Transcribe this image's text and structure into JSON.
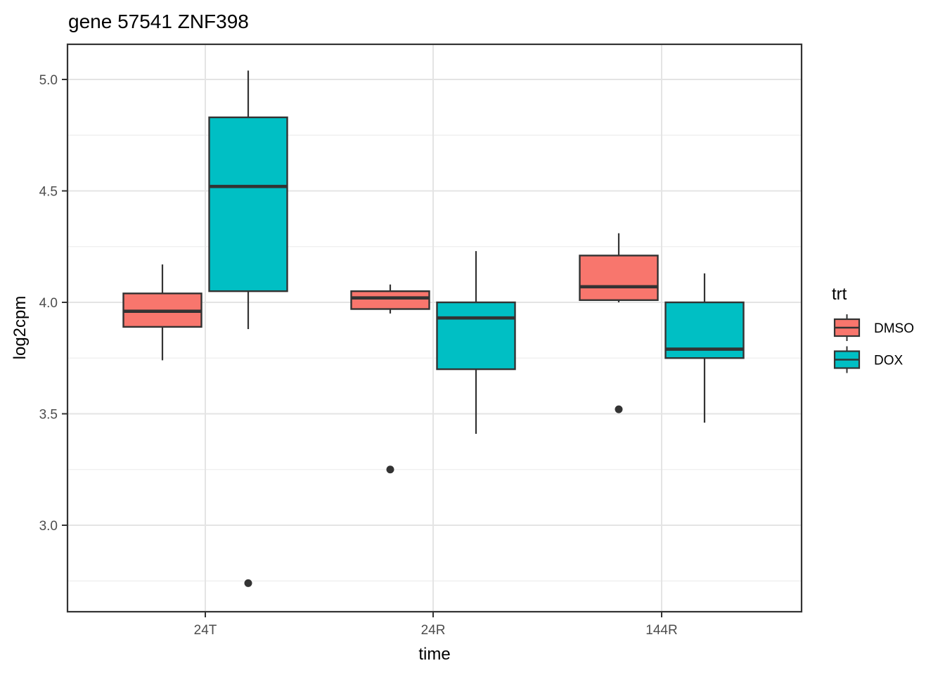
{
  "chart_data": {
    "type": "boxplot",
    "title": "gene 57541 ZNF398",
    "xlabel": "time",
    "ylabel": "log2cpm",
    "categories": [
      "24T",
      "24R",
      "144R"
    ],
    "legend": {
      "title": "trt",
      "entries": [
        "DMSO",
        "DOX"
      ],
      "position": "right"
    },
    "colors": {
      "DMSO": "#F8766D",
      "DOX": "#00BFC4",
      "stroke": "#333333"
    },
    "y_axis": {
      "ticks": [
        5.0,
        4.5,
        4.0,
        3.5,
        3.0
      ],
      "tick_labels": [
        "5.0",
        "4.5",
        "4.0",
        "3.5",
        "3.0"
      ],
      "minor_ticks": [
        4.75,
        4.25,
        3.75,
        3.25,
        2.75
      ],
      "range": [
        2.61,
        5.16
      ],
      "grid": true
    },
    "series": [
      {
        "name": "DMSO",
        "color": "#F8766D",
        "boxes": [
          {
            "category": "24T",
            "whisker_low": 3.74,
            "q1": 3.89,
            "median": 3.96,
            "q3": 4.04,
            "whisker_high": 4.17,
            "outliers": []
          },
          {
            "category": "24R",
            "whisker_low": 3.95,
            "q1": 3.97,
            "median": 4.02,
            "q3": 4.05,
            "whisker_high": 4.08,
            "outliers": [
              3.25
            ]
          },
          {
            "category": "144R",
            "whisker_low": 4.0,
            "q1": 4.01,
            "median": 4.07,
            "q3": 4.21,
            "whisker_high": 4.31,
            "outliers": [
              3.52
            ]
          }
        ]
      },
      {
        "name": "DOX",
        "color": "#00BFC4",
        "boxes": [
          {
            "category": "24T",
            "whisker_low": 3.88,
            "q1": 4.05,
            "median": 4.52,
            "q3": 4.83,
            "whisker_high": 5.04,
            "outliers": [
              2.74
            ]
          },
          {
            "category": "24R",
            "whisker_low": 3.41,
            "q1": 3.7,
            "median": 3.93,
            "q3": 4.0,
            "whisker_high": 4.23,
            "outliers": []
          },
          {
            "category": "144R",
            "whisker_low": 3.46,
            "q1": 3.75,
            "median": 3.79,
            "q3": 4.0,
            "whisker_high": 4.13,
            "outliers": []
          }
        ]
      }
    ]
  }
}
